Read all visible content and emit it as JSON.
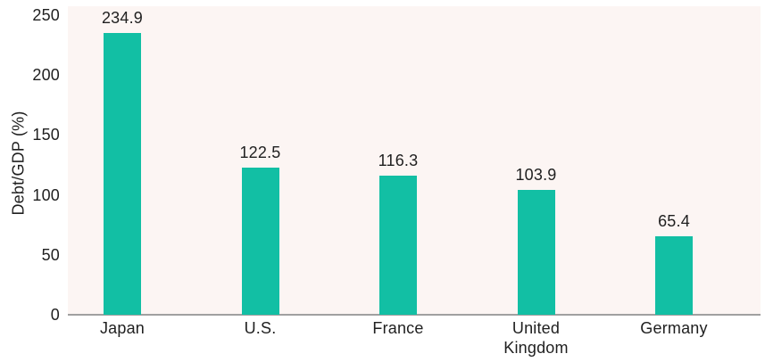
{
  "chart_data": {
    "type": "bar",
    "categories": [
      "Japan",
      "U.S.",
      "France",
      "United Kingdom",
      "Germany"
    ],
    "values": [
      234.9,
      122.5,
      116.3,
      103.9,
      65.4
    ],
    "value_labels": [
      "234.9",
      "122.5",
      "116.3",
      "103.9",
      "65.4"
    ],
    "title": "",
    "xlabel": "",
    "ylabel": "Debt/GDP (%)",
    "ylim": [
      0,
      250
    ],
    "yticks": [
      "0",
      "50",
      "100",
      "150",
      "200",
      "250"
    ],
    "grid": false,
    "legend": "none",
    "colors": {
      "bar": "#12bfa4",
      "plot_background": "#fcf5f3",
      "page_background": "#ffffff",
      "text": "#1f1f1f",
      "axis_line": "#a0a0a0"
    }
  }
}
